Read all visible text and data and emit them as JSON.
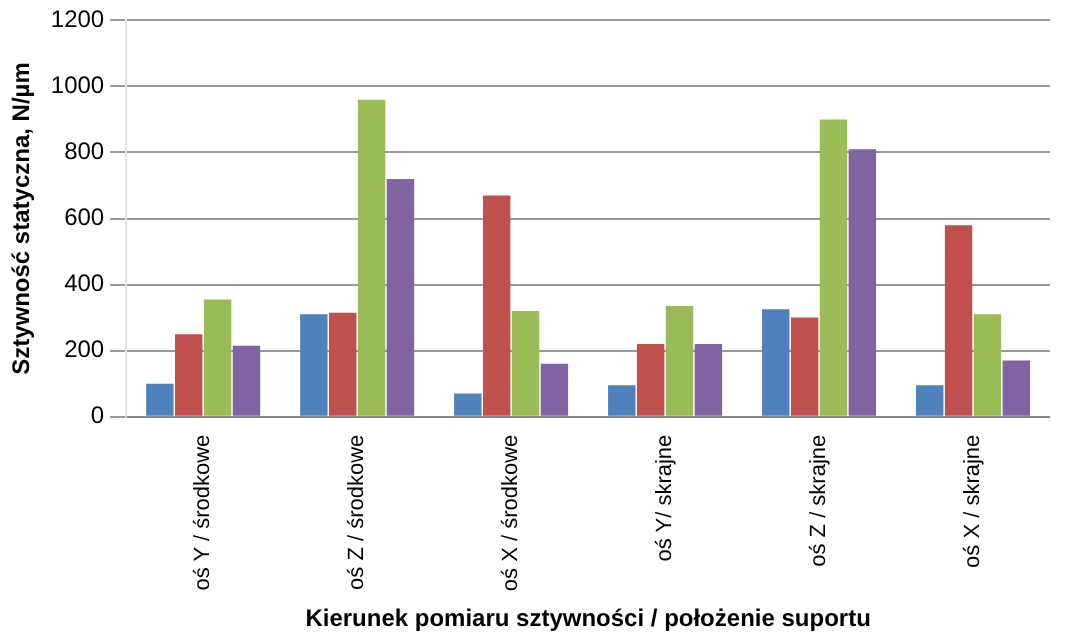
{
  "chart_data": {
    "type": "bar",
    "xlabel": "Kierunek pomiaru sztywności / położenie suportu",
    "ylabel": "Sztywność statyczna, N/µm",
    "categories": [
      "oś Y / środkowe",
      "oś Z / środkowe",
      "oś X / środkowe",
      "oś Y/ skrajne",
      "oś Z / skrajne",
      "oś X / skrajne"
    ],
    "series": [
      {
        "color": "#4f81bd",
        "values": [
          100,
          310,
          70,
          95,
          325,
          95
        ]
      },
      {
        "color": "#c0504d",
        "values": [
          250,
          315,
          670,
          220,
          300,
          580
        ]
      },
      {
        "color": "#9bbb59",
        "values": [
          355,
          960,
          320,
          335,
          900,
          310
        ]
      },
      {
        "color": "#8064a2",
        "values": [
          215,
          720,
          160,
          220,
          810,
          170
        ]
      }
    ],
    "ylim": [
      0,
      1200
    ],
    "yticks": [
      0,
      200,
      400,
      600,
      800,
      1000,
      1200
    ],
    "grid": "y",
    "legend": false
  }
}
